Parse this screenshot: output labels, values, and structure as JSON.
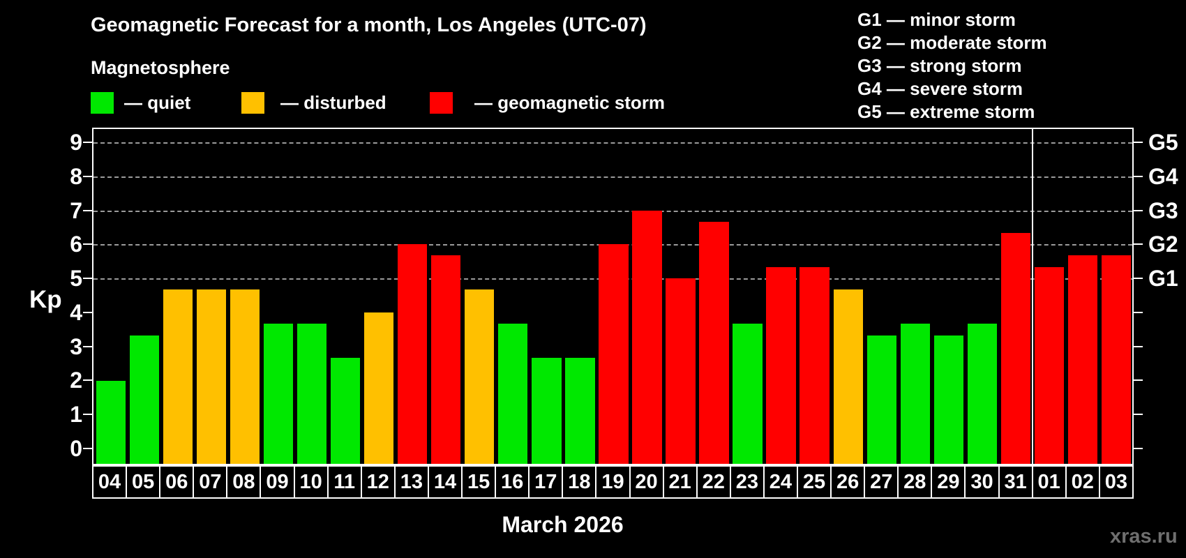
{
  "header": {
    "title": "Geomagnetic Forecast for a month, Los Angeles (UTC-07)",
    "subtitle": "Magnetosphere"
  },
  "legend": {
    "quiet": "— quiet",
    "disturbed": "— disturbed",
    "storm": "— geomagnetic storm"
  },
  "g_legend": [
    "G1 — minor storm",
    "G2 — moderate storm",
    "G3 — strong storm",
    "G4 — severe storm",
    "G5 — extreme storm"
  ],
  "colors": {
    "quiet": "#00e800",
    "disturbed": "#ffc000",
    "storm": "#ff0000",
    "grid": "#9b9b9b",
    "axis": "#ffffff",
    "watermark": "#6f6f6f"
  },
  "axis": {
    "ylabel": "Kp",
    "y_tick_labels": [
      "0",
      "1",
      "2",
      "3",
      "4",
      "5",
      "6",
      "7",
      "8",
      "9"
    ],
    "right_labels": [
      {
        "kp": 5,
        "label": "G1"
      },
      {
        "kp": 6,
        "label": "G2"
      },
      {
        "kp": 7,
        "label": "G3"
      },
      {
        "kp": 8,
        "label": "G4"
      },
      {
        "kp": 9,
        "label": "G5"
      }
    ]
  },
  "footer": {
    "month_caption": "March 2026",
    "watermark": "xras.ru"
  },
  "chart_data": {
    "type": "bar",
    "title": "Geomagnetic Forecast for a month, Los Angeles (UTC-07)",
    "ylabel": "Kp",
    "ylim": [
      -0.45,
      9.39
    ],
    "gridlines_at": [
      5,
      6,
      7,
      8,
      9
    ],
    "legend_position": "top",
    "month_separator_after_index": 27,
    "days": [
      "04",
      "05",
      "06",
      "07",
      "08",
      "09",
      "10",
      "11",
      "12",
      "13",
      "14",
      "15",
      "16",
      "17",
      "18",
      "19",
      "20",
      "21",
      "22",
      "23",
      "24",
      "25",
      "26",
      "27",
      "28",
      "29",
      "30",
      "31",
      "01",
      "02",
      "03"
    ],
    "values": [
      2.0,
      3.33,
      4.67,
      4.67,
      4.67,
      3.67,
      3.67,
      2.67,
      4.0,
      6.0,
      5.67,
      4.67,
      3.67,
      2.67,
      2.67,
      6.0,
      7.0,
      5.0,
      6.67,
      3.67,
      5.33,
      5.33,
      4.67,
      3.33,
      3.67,
      3.33,
      3.67,
      6.33,
      5.33,
      5.67,
      5.67
    ],
    "status": [
      "quiet",
      "quiet",
      "disturbed",
      "disturbed",
      "disturbed",
      "quiet",
      "quiet",
      "quiet",
      "disturbed",
      "storm",
      "storm",
      "disturbed",
      "quiet",
      "quiet",
      "quiet",
      "storm",
      "storm",
      "storm",
      "storm",
      "quiet",
      "storm",
      "storm",
      "disturbed",
      "quiet",
      "quiet",
      "quiet",
      "quiet",
      "storm",
      "storm",
      "storm",
      "storm"
    ]
  }
}
